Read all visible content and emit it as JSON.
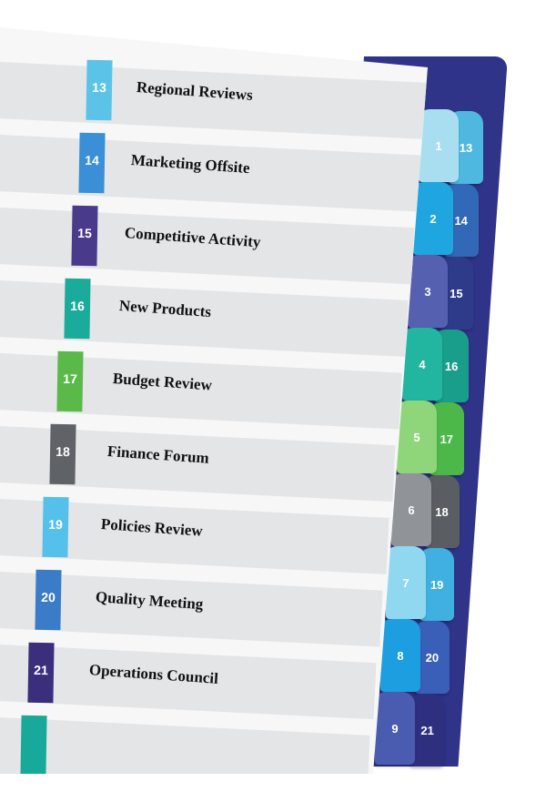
{
  "sections": [
    {
      "number": "13",
      "title": "Regional Reviews",
      "color": "#5cc3e8"
    },
    {
      "number": "14",
      "title": "Marketing Offsite",
      "color": "#3b8fd6"
    },
    {
      "number": "15",
      "title": "Competitive Activity",
      "color": "#4a3a8c"
    },
    {
      "number": "16",
      "title": "New Products",
      "color": "#1aab9b"
    },
    {
      "number": "17",
      "title": "Budget Review",
      "color": "#5bb94a"
    },
    {
      "number": "18",
      "title": "Finance Forum",
      "color": "#5f6368"
    },
    {
      "number": "19",
      "title": "Policies Review",
      "color": "#55c0ea"
    },
    {
      "number": "20",
      "title": "Quality Meeting",
      "color": "#3a7cc8"
    },
    {
      "number": "21",
      "title": "Operations Council",
      "color": "#3b2f7d"
    },
    {
      "number": "",
      "title": "",
      "color": "#19a99a"
    }
  ],
  "front_tabs": [
    {
      "label": "1",
      "color": "#a9def0"
    },
    {
      "label": "2",
      "color": "#1fa6e0"
    },
    {
      "label": "3",
      "color": "#5560b0"
    },
    {
      "label": "4",
      "color": "#22b5a0"
    },
    {
      "label": "5",
      "color": "#8fd67a"
    },
    {
      "label": "6",
      "color": "#909498"
    },
    {
      "label": "7",
      "color": "#8fd8f0"
    },
    {
      "label": "8",
      "color": "#1c9ee0"
    },
    {
      "label": "9",
      "color": "#4a5cb0"
    }
  ],
  "back_tabs": [
    {
      "label": "13",
      "color": "#4fb8e0"
    },
    {
      "label": "14",
      "color": "#3268b8"
    },
    {
      "label": "15",
      "color": "#2e3a8a"
    },
    {
      "label": "16",
      "color": "#1a9e8c"
    },
    {
      "label": "17",
      "color": "#4cb84a"
    },
    {
      "label": "18",
      "color": "#5a5e62"
    },
    {
      "label": "19",
      "color": "#3fb0e0"
    },
    {
      "label": "20",
      "color": "#3a5fb8"
    },
    {
      "label": "21",
      "color": "#2f2f80"
    }
  ]
}
